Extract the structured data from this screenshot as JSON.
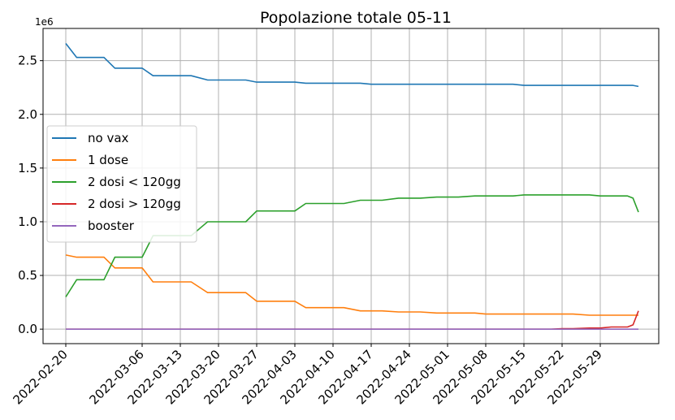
{
  "chart_data": {
    "type": "line",
    "title": "Popolazione totale 05-11",
    "xlabel": "",
    "ylabel": "",
    "y_offset_label": "1e6",
    "ylim": [
      -0.135,
      2.8
    ],
    "yticks": [
      0.0,
      0.5,
      1.0,
      1.5,
      2.0,
      2.5
    ],
    "ytick_labels": [
      "0.0",
      "0.5",
      "1.0",
      "1.5",
      "2.0",
      "2.5"
    ],
    "xticks": [
      "2022-02-20",
      "2022-03-06",
      "2022-03-13",
      "2022-03-20",
      "2022-03-27",
      "2022-04-03",
      "2022-04-10",
      "2022-04-17",
      "2022-04-24",
      "2022-05-01",
      "2022-05-08",
      "2022-05-15",
      "2022-05-22",
      "2022-05-29"
    ],
    "grid": true,
    "legend_position": "center-left",
    "x": [
      "2022-02-20",
      "2022-02-22",
      "2022-02-25",
      "2022-02-27",
      "2022-03-01",
      "2022-03-04",
      "2022-03-06",
      "2022-03-08",
      "2022-03-11",
      "2022-03-13",
      "2022-03-15",
      "2022-03-18",
      "2022-03-20",
      "2022-03-22",
      "2022-03-25",
      "2022-03-27",
      "2022-03-29",
      "2022-04-01",
      "2022-04-03",
      "2022-04-05",
      "2022-04-08",
      "2022-04-10",
      "2022-04-12",
      "2022-04-15",
      "2022-04-17",
      "2022-04-19",
      "2022-04-22",
      "2022-04-24",
      "2022-04-26",
      "2022-04-29",
      "2022-05-01",
      "2022-05-03",
      "2022-05-06",
      "2022-05-08",
      "2022-05-10",
      "2022-05-13",
      "2022-05-15",
      "2022-05-17",
      "2022-05-20",
      "2022-05-22",
      "2022-05-24",
      "2022-05-27",
      "2022-05-29",
      "2022-05-31",
      "2022-06-03",
      "2022-06-04",
      "2022-06-05"
    ],
    "series": [
      {
        "name": "no vax",
        "color": "#1f77b4",
        "values": [
          2.66,
          2.53,
          2.53,
          2.53,
          2.43,
          2.43,
          2.43,
          2.36,
          2.36,
          2.36,
          2.36,
          2.32,
          2.32,
          2.32,
          2.32,
          2.3,
          2.3,
          2.3,
          2.3,
          2.29,
          2.29,
          2.29,
          2.29,
          2.29,
          2.28,
          2.28,
          2.28,
          2.28,
          2.28,
          2.28,
          2.28,
          2.28,
          2.28,
          2.28,
          2.28,
          2.28,
          2.27,
          2.27,
          2.27,
          2.27,
          2.27,
          2.27,
          2.27,
          2.27,
          2.27,
          2.27,
          2.26
        ]
      },
      {
        "name": "1 dose",
        "color": "#ff7f0e",
        "values": [
          0.69,
          0.67,
          0.67,
          0.67,
          0.57,
          0.57,
          0.57,
          0.44,
          0.44,
          0.44,
          0.44,
          0.34,
          0.34,
          0.34,
          0.34,
          0.26,
          0.26,
          0.26,
          0.26,
          0.2,
          0.2,
          0.2,
          0.2,
          0.17,
          0.17,
          0.17,
          0.16,
          0.16,
          0.16,
          0.15,
          0.15,
          0.15,
          0.15,
          0.14,
          0.14,
          0.14,
          0.14,
          0.14,
          0.14,
          0.14,
          0.14,
          0.13,
          0.13,
          0.13,
          0.13,
          0.13,
          0.13
        ]
      },
      {
        "name": "2 dosi < 120gg",
        "color": "#2ca02c",
        "values": [
          0.3,
          0.46,
          0.46,
          0.46,
          0.67,
          0.67,
          0.67,
          0.87,
          0.87,
          0.87,
          0.87,
          1.0,
          1.0,
          1.0,
          1.0,
          1.1,
          1.1,
          1.1,
          1.1,
          1.17,
          1.17,
          1.17,
          1.17,
          1.2,
          1.2,
          1.2,
          1.22,
          1.22,
          1.22,
          1.23,
          1.23,
          1.23,
          1.24,
          1.24,
          1.24,
          1.24,
          1.25,
          1.25,
          1.25,
          1.25,
          1.25,
          1.25,
          1.24,
          1.24,
          1.24,
          1.22,
          1.09
        ]
      },
      {
        "name": "2 dosi > 120gg",
        "color": "#d62728",
        "values": [
          0,
          0,
          0,
          0,
          0,
          0,
          0,
          0,
          0,
          0,
          0,
          0,
          0,
          0,
          0,
          0,
          0,
          0,
          0,
          0,
          0,
          0,
          0,
          0,
          0,
          0,
          0,
          0,
          0,
          0,
          0,
          0,
          0,
          0,
          0,
          0,
          0,
          0,
          0,
          0.005,
          0.005,
          0.01,
          0.01,
          0.02,
          0.02,
          0.04,
          0.17
        ]
      },
      {
        "name": "booster",
        "color": "#9467bd",
        "values": [
          0,
          0,
          0,
          0,
          0,
          0,
          0,
          0,
          0,
          0,
          0,
          0,
          0,
          0,
          0,
          0,
          0,
          0,
          0,
          0,
          0,
          0,
          0,
          0,
          0,
          0,
          0,
          0,
          0,
          0,
          0,
          0,
          0,
          0,
          0,
          0,
          0,
          0,
          0,
          0,
          0,
          0,
          0,
          0,
          0,
          0,
          0
        ]
      }
    ]
  }
}
